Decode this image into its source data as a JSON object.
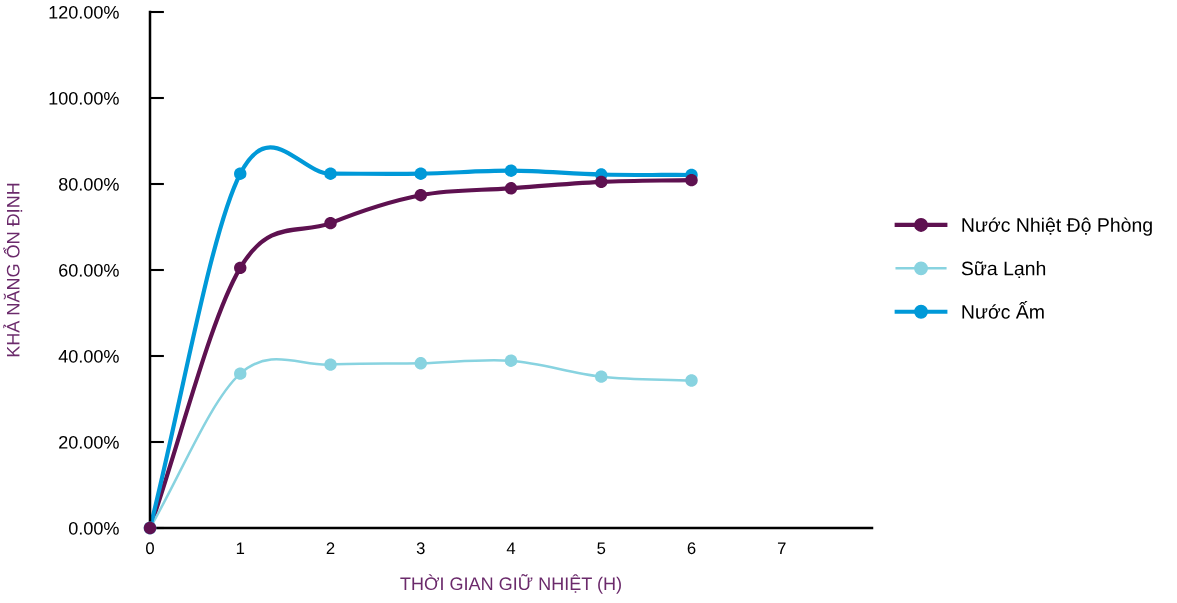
{
  "chart_data": {
    "type": "line",
    "xlabel": "THỜI GIAN GIỮ NHIỆT (H)",
    "ylabel": "KHẢ NĂNG ỔN ĐỊNH",
    "x": [
      0,
      1,
      2,
      3,
      4,
      5,
      6
    ],
    "series": [
      {
        "name": "Nước Nhiệt Độ Phòng",
        "color": "#5e1150",
        "values": [
          0,
          60.5,
          70.9,
          77.4,
          79.0,
          80.5,
          80.9
        ]
      },
      {
        "name": "Sữa Lạnh",
        "color": "#88d3e0",
        "values": [
          0,
          35.9,
          38.0,
          38.3,
          38.9,
          35.2,
          34.3
        ]
      },
      {
        "name": "Nước Ấm",
        "color": "#0099d8",
        "values": [
          0,
          82.4,
          82.4,
          82.4,
          83.1,
          82.2,
          82.1
        ]
      }
    ],
    "xlim": [
      0,
      8
    ],
    "xticks": [
      0,
      1,
      2,
      3,
      4,
      5,
      6,
      7
    ],
    "ylim": [
      0,
      120
    ],
    "yticks": [
      {
        "value": 0,
        "label": "0.00%"
      },
      {
        "value": 20,
        "label": "20.00%"
      },
      {
        "value": 40,
        "label": "40.00%"
      },
      {
        "value": 60,
        "label": "60.00%"
      },
      {
        "value": 80,
        "label": "80.00%"
      },
      {
        "value": 100,
        "label": "100.00%"
      },
      {
        "value": 120,
        "label": "120.00%"
      }
    ],
    "grid": false,
    "legend": "right",
    "marker": "circle",
    "line_style": "solid"
  }
}
